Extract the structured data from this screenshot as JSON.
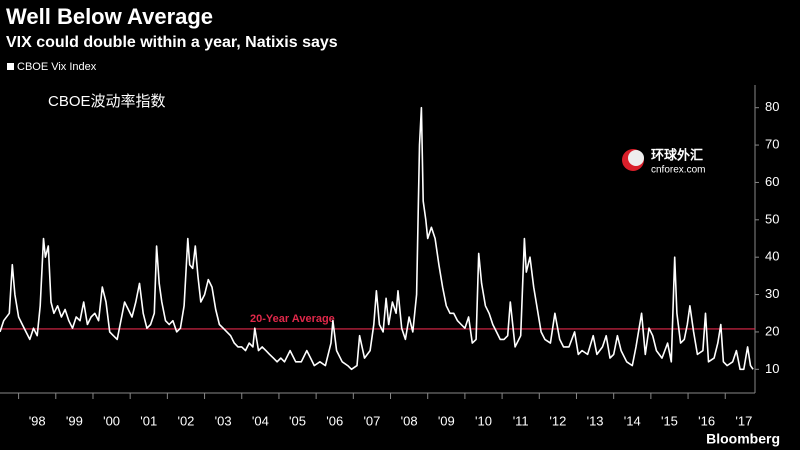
{
  "chart_data": {
    "type": "line",
    "title": "Well Below Average",
    "subtitle": "VIX could double within a year, Natixis says",
    "overlay_label": "CBOE波动率指数",
    "watermark": {
      "name": "环球外汇",
      "site": "cnforex.com"
    },
    "source": "Bloomberg",
    "legend": "top-left",
    "average": {
      "label": "20-Year Average",
      "value": 20.8,
      "color": "#e0284a"
    },
    "xlim": [
      1997.5,
      2017.8
    ],
    "xticks": [
      {
        "value": 1998.5,
        "label": "'98"
      },
      {
        "value": 1999.5,
        "label": "'99"
      },
      {
        "value": 2000.5,
        "label": "'00"
      },
      {
        "value": 2001.5,
        "label": "'01"
      },
      {
        "value": 2002.5,
        "label": "'02"
      },
      {
        "value": 2003.5,
        "label": "'03"
      },
      {
        "value": 2004.5,
        "label": "'04"
      },
      {
        "value": 2005.5,
        "label": "'05"
      },
      {
        "value": 2006.5,
        "label": "'06"
      },
      {
        "value": 2007.5,
        "label": "'07"
      },
      {
        "value": 2008.5,
        "label": "'08"
      },
      {
        "value": 2009.5,
        "label": "'09"
      },
      {
        "value": 2010.5,
        "label": "'10"
      },
      {
        "value": 2011.5,
        "label": "'11"
      },
      {
        "value": 2012.5,
        "label": "'12"
      },
      {
        "value": 2013.5,
        "label": "'13"
      },
      {
        "value": 2014.5,
        "label": "'14"
      },
      {
        "value": 2015.5,
        "label": "'15"
      },
      {
        "value": 2016.5,
        "label": "'16"
      },
      {
        "value": 2017.5,
        "label": "'17"
      }
    ],
    "xminorticks": [
      1998,
      1999,
      2000,
      2001,
      2002,
      2003,
      2004,
      2005,
      2006,
      2007,
      2008,
      2009,
      2010,
      2011,
      2012,
      2013,
      2014,
      2015,
      2016,
      2017
    ],
    "ylim": [
      5,
      85
    ],
    "yticks": [
      10,
      20,
      30,
      40,
      50,
      60,
      70,
      80
    ],
    "grid": false,
    "x": [
      1997.5,
      1997.6,
      1997.75,
      1997.83,
      1997.9,
      1998.0,
      1998.1,
      1998.2,
      1998.3,
      1998.4,
      1998.5,
      1998.58,
      1998.67,
      1998.72,
      1998.8,
      1998.87,
      1998.95,
      1999.05,
      1999.15,
      1999.25,
      1999.35,
      1999.45,
      1999.55,
      1999.65,
      1999.75,
      1999.85,
      1999.95,
      2000.05,
      2000.15,
      2000.25,
      2000.35,
      2000.45,
      2000.55,
      2000.65,
      2000.75,
      2000.85,
      2000.95,
      2001.05,
      2001.15,
      2001.25,
      2001.35,
      2001.45,
      2001.55,
      2001.65,
      2001.71,
      2001.78,
      2001.85,
      2001.95,
      2002.05,
      2002.15,
      2002.25,
      2002.35,
      2002.45,
      2002.55,
      2002.6,
      2002.68,
      2002.75,
      2002.82,
      2002.9,
      2003.0,
      2003.1,
      2003.2,
      2003.3,
      2003.4,
      2003.5,
      2003.6,
      2003.7,
      2003.8,
      2003.9,
      2004.0,
      2004.1,
      2004.2,
      2004.3,
      2004.35,
      2004.45,
      2004.55,
      2004.65,
      2004.75,
      2004.85,
      2004.95,
      2005.05,
      2005.15,
      2005.3,
      2005.45,
      2005.6,
      2005.75,
      2005.85,
      2005.95,
      2006.1,
      2006.25,
      2006.4,
      2006.45,
      2006.55,
      2006.7,
      2006.85,
      2006.95,
      2007.1,
      2007.17,
      2007.3,
      2007.45,
      2007.55,
      2007.62,
      2007.7,
      2007.8,
      2007.88,
      2007.95,
      2008.05,
      2008.15,
      2008.2,
      2008.3,
      2008.4,
      2008.5,
      2008.6,
      2008.7,
      2008.78,
      2008.83,
      2008.88,
      2008.95,
      2009.0,
      2009.1,
      2009.2,
      2009.3,
      2009.4,
      2009.5,
      2009.6,
      2009.7,
      2009.8,
      2009.9,
      2010.0,
      2010.1,
      2010.2,
      2010.3,
      2010.37,
      2010.45,
      2010.55,
      2010.65,
      2010.75,
      2010.85,
      2010.95,
      2011.05,
      2011.15,
      2011.22,
      2011.35,
      2011.5,
      2011.6,
      2011.65,
      2011.75,
      2011.85,
      2011.95,
      2012.05,
      2012.15,
      2012.3,
      2012.42,
      2012.55,
      2012.65,
      2012.8,
      2012.95,
      2013.05,
      2013.15,
      2013.3,
      2013.45,
      2013.55,
      2013.7,
      2013.8,
      2013.9,
      2014.0,
      2014.1,
      2014.2,
      2014.35,
      2014.5,
      2014.6,
      2014.75,
      2014.85,
      2014.95,
      2015.05,
      2015.15,
      2015.3,
      2015.45,
      2015.55,
      2015.64,
      2015.7,
      2015.8,
      2015.9,
      2015.98,
      2016.05,
      2016.15,
      2016.25,
      2016.4,
      2016.47,
      2016.55,
      2016.7,
      2016.8,
      2016.88,
      2016.95,
      2017.05,
      2017.2,
      2017.3,
      2017.4,
      2017.5,
      2017.6,
      2017.68,
      2017.75
    ],
    "series": [
      {
        "name": "CBOE Vix Index",
        "color": "#ffffff",
        "values": [
          20,
          23,
          25,
          38,
          30,
          24,
          22,
          20,
          18,
          21,
          19,
          27,
          45,
          40,
          43,
          28,
          25,
          27,
          24,
          26,
          23,
          21,
          24,
          23,
          28,
          22,
          24,
          25,
          23,
          32,
          28,
          20,
          19,
          18,
          23,
          28,
          26,
          24,
          28,
          33,
          25,
          21,
          22,
          25,
          43,
          33,
          28,
          23,
          22,
          23,
          20,
          21,
          27,
          45,
          38,
          37,
          43,
          35,
          28,
          30,
          34,
          32,
          26,
          22,
          21,
          20,
          19,
          17,
          16,
          16,
          15,
          17,
          16,
          21,
          15,
          16,
          15,
          14,
          13,
          12,
          13,
          12,
          15,
          12,
          12,
          15,
          13,
          11,
          12,
          11,
          17,
          23,
          15,
          12,
          11,
          10,
          11,
          19,
          13,
          15,
          22,
          31,
          22,
          20,
          29,
          22,
          28,
          25,
          31,
          21,
          18,
          24,
          20,
          30,
          70,
          80,
          55,
          50,
          45,
          48,
          45,
          38,
          32,
          27,
          25,
          25,
          23,
          22,
          21,
          24,
          17,
          18,
          41,
          33,
          27,
          25,
          22,
          20,
          18,
          18,
          19,
          28,
          16,
          19,
          45,
          36,
          40,
          32,
          26,
          20,
          18,
          17,
          25,
          18,
          16,
          16,
          20,
          14,
          15,
          14,
          19,
          14,
          16,
          19,
          13,
          14,
          19,
          15,
          12,
          11,
          16,
          25,
          14,
          21,
          19,
          15,
          13,
          17,
          12,
          40,
          25,
          17,
          18,
          22,
          27,
          20,
          14,
          15,
          25,
          12,
          13,
          17,
          22,
          12,
          11,
          12,
          15,
          10,
          10,
          16,
          11,
          10
        ]
      }
    ]
  }
}
